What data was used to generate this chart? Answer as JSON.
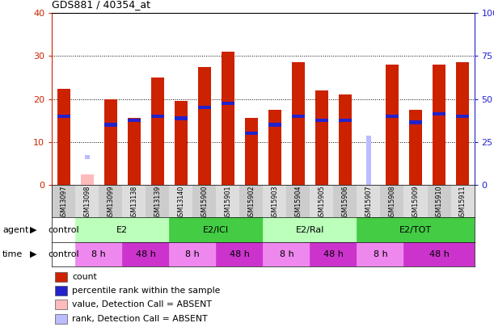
{
  "title": "GDS881 / 40354_at",
  "samples": [
    "GSM13097",
    "GSM13098",
    "GSM13099",
    "GSM13138",
    "GSM13139",
    "GSM13140",
    "GSM15900",
    "GSM15901",
    "GSM15902",
    "GSM15903",
    "GSM15904",
    "GSM15905",
    "GSM15906",
    "GSM15907",
    "GSM15908",
    "GSM15909",
    "GSM15910",
    "GSM15911"
  ],
  "red_values": [
    22.3,
    0,
    20.0,
    15.5,
    25.0,
    19.5,
    27.5,
    31.0,
    15.5,
    17.5,
    28.5,
    22.0,
    21.0,
    0,
    28.0,
    17.5,
    28.0,
    28.5
  ],
  "blue_values": [
    16.0,
    0,
    14.0,
    15.0,
    16.0,
    15.5,
    18.0,
    19.0,
    12.0,
    14.0,
    16.0,
    15.0,
    15.0,
    0,
    16.0,
    14.5,
    16.5,
    16.0
  ],
  "pink_values": [
    0,
    2.5,
    0,
    0,
    0,
    0,
    0,
    0,
    0,
    0,
    0,
    0,
    0,
    0,
    0,
    0,
    0,
    0
  ],
  "light_blue_values": [
    0,
    6.5,
    0,
    0,
    0,
    0,
    0,
    0,
    0,
    0,
    0,
    0,
    0,
    11.5,
    0,
    0,
    0,
    0
  ],
  "absent_flags": [
    false,
    true,
    false,
    false,
    false,
    false,
    false,
    false,
    false,
    false,
    false,
    false,
    false,
    false,
    false,
    false,
    false,
    false
  ],
  "absent_bo_flags": [
    false,
    false,
    false,
    false,
    false,
    false,
    false,
    false,
    false,
    false,
    false,
    false,
    false,
    true,
    false,
    false,
    false,
    false
  ],
  "agent_groups": [
    {
      "label": "control",
      "start": 0,
      "end": 1,
      "color": "#ffffff"
    },
    {
      "label": "E2",
      "start": 1,
      "end": 5,
      "color": "#bbffbb"
    },
    {
      "label": "E2/ICI",
      "start": 5,
      "end": 9,
      "color": "#44cc44"
    },
    {
      "label": "E2/Ral",
      "start": 9,
      "end": 13,
      "color": "#bbffbb"
    },
    {
      "label": "E2/TOT",
      "start": 13,
      "end": 18,
      "color": "#44cc44"
    }
  ],
  "time_groups": [
    {
      "label": "control",
      "start": 0,
      "end": 1,
      "color": "#ffffff"
    },
    {
      "label": "8 h",
      "start": 1,
      "end": 3,
      "color": "#ee88ee"
    },
    {
      "label": "48 h",
      "start": 3,
      "end": 5,
      "color": "#cc33cc"
    },
    {
      "label": "8 h",
      "start": 5,
      "end": 7,
      "color": "#ee88ee"
    },
    {
      "label": "48 h",
      "start": 7,
      "end": 9,
      "color": "#cc33cc"
    },
    {
      "label": "8 h",
      "start": 9,
      "end": 11,
      "color": "#ee88ee"
    },
    {
      "label": "48 h",
      "start": 11,
      "end": 13,
      "color": "#cc33cc"
    },
    {
      "label": "8 h",
      "start": 13,
      "end": 15,
      "color": "#ee88ee"
    },
    {
      "label": "48 h",
      "start": 15,
      "end": 18,
      "color": "#cc33cc"
    }
  ],
  "bar_color_red": "#cc2200",
  "bar_color_blue": "#2222cc",
  "bar_color_pink": "#ffbbbb",
  "bar_color_light_blue": "#bbbbff",
  "ylim_left": [
    0,
    40
  ],
  "ylim_right": [
    0,
    100
  ],
  "yticks_left": [
    0,
    10,
    20,
    30,
    40
  ],
  "yticks_right": [
    0,
    25,
    50,
    75,
    100
  ],
  "ytick_labels_right": [
    "0",
    "25",
    "50",
    "75",
    "100%"
  ]
}
